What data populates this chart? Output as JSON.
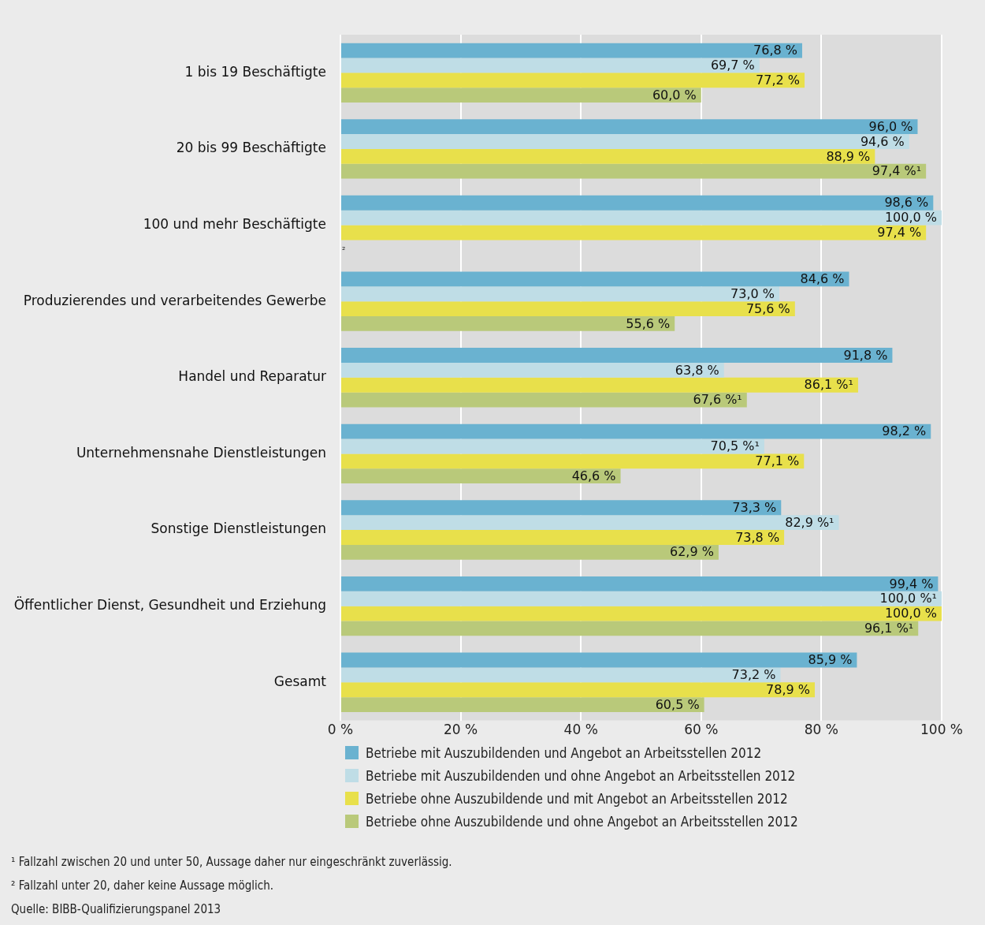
{
  "chart_data": {
    "type": "bar",
    "orientation": "horizontal",
    "categories": [
      "1 bis 19 Beschäftigte",
      "20 bis 99 Beschäftigte",
      "100 und mehr Beschäftigte",
      "Produzierendes und verarbeitendes Gewerbe",
      "Handel und Reparatur",
      "Unternehmensnahe Dienstleistungen",
      "Sonstige Dienstleistungen",
      "Öffentlicher Dienst, Gesundheit und Erziehung",
      "Gesamt"
    ],
    "series": [
      {
        "name": "Betriebe mit Auszubildenden und Angebot an Arbeitsstellen 2012",
        "color": "#6ab2d0",
        "values": [
          76.8,
          96.0,
          98.6,
          84.6,
          91.8,
          98.2,
          73.3,
          99.4,
          85.9
        ],
        "value_labels": [
          "76,8 %",
          "96,0 %",
          "98,6 %",
          "84,6 %",
          "91,8 %",
          "98,2 %",
          "73,3 %",
          "99,4 %",
          "85,9 %"
        ]
      },
      {
        "name": "Betriebe mit Auszubildenden und ohne Angebot an Arbeitsstellen 2012",
        "color": "#bfdde6",
        "values": [
          69.7,
          94.6,
          100.0,
          73.0,
          63.8,
          70.5,
          82.9,
          100.0,
          73.2
        ],
        "value_labels": [
          "69,7 %",
          "94,6 %",
          "100,0 %",
          "73,0 %",
          "63,8 %",
          "70,5 %¹",
          "82,9 %¹",
          "100,0 %¹",
          "73,2 %"
        ]
      },
      {
        "name": "Betriebe ohne Auszubildende und mit Angebot an Arbeitsstellen 2012",
        "color": "#e8e04b",
        "values": [
          77.2,
          88.9,
          97.4,
          75.6,
          86.1,
          77.1,
          73.8,
          100.0,
          78.9
        ],
        "value_labels": [
          "77,2 %",
          "88,9 %",
          "97,4 %",
          "75,6 %",
          "86,1 %¹",
          "77,1 %",
          "73,8 %",
          "100,0 %",
          "78,9 %"
        ]
      },
      {
        "name": "Betriebe ohne Auszubildende und ohne Angebot an Arbeitsstellen 2012",
        "color": "#b9c97a",
        "values": [
          60.0,
          97.4,
          null,
          55.6,
          67.6,
          46.6,
          62.9,
          96.1,
          60.5
        ],
        "value_labels": [
          "60,0 %",
          "97,4 %¹",
          "²",
          "55,6 %",
          "67,6 %¹",
          "46,6 %",
          "62,9 %",
          "96,1 %¹",
          "60,5 %"
        ]
      }
    ],
    "xlim": [
      0,
      100
    ],
    "xticks": [
      {
        "value": 0,
        "label": "0 %"
      },
      {
        "value": 20,
        "label": "20 %"
      },
      {
        "value": 40,
        "label": "40 %"
      },
      {
        "value": 60,
        "label": "60 %"
      },
      {
        "value": 80,
        "label": "80 %"
      },
      {
        "value": 100,
        "label": "100 %"
      }
    ],
    "grid": "x",
    "legend": "bottom",
    "annotations": [
      "¹ Fallzahl zwischen 20 und unter 50, Aussage daher nur eingeschränkt zuverlässig.",
      "² Fallzahl unter 20, daher keine Aussage möglich.",
      "Quelle: BIBB-Qualifizierungspanel 2013"
    ]
  }
}
